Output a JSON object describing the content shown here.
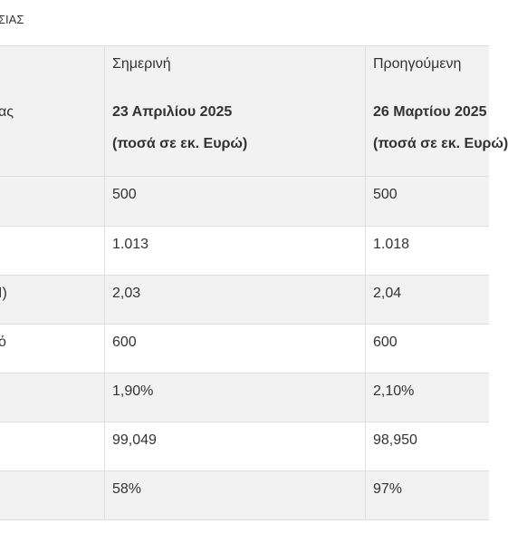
{
  "section_title": "ΣΙΑΣ",
  "table": {
    "header": {
      "label": "",
      "current": "Σημερινή",
      "previous": "Προηγούμενη"
    },
    "date_row": {
      "label": "ας",
      "current_date": "23 Απριλίου 2025",
      "current_unit": "(ποσά σε εκ. Ευρώ)",
      "previous_date": "26 Μαρτίου 2025",
      "previous_unit": "(ποσά σε εκ. Ευρώ)"
    },
    "rows": [
      {
        "label": "",
        "current": "500",
        "previous": "500"
      },
      {
        "label": "",
        "current": "1.013",
        "previous": "1.018"
      },
      {
        "label": "Ι)",
        "current": "2,03",
        "previous": "2,04"
      },
      {
        "label": "ό",
        "current": "600",
        "previous": "600"
      },
      {
        "label": "",
        "current": "1,90%",
        "previous": "2,10%"
      },
      {
        "label": "",
        "current": "99,049",
        "previous": "98,950"
      },
      {
        "label": "",
        "current": "58%",
        "previous": "97%"
      }
    ]
  }
}
